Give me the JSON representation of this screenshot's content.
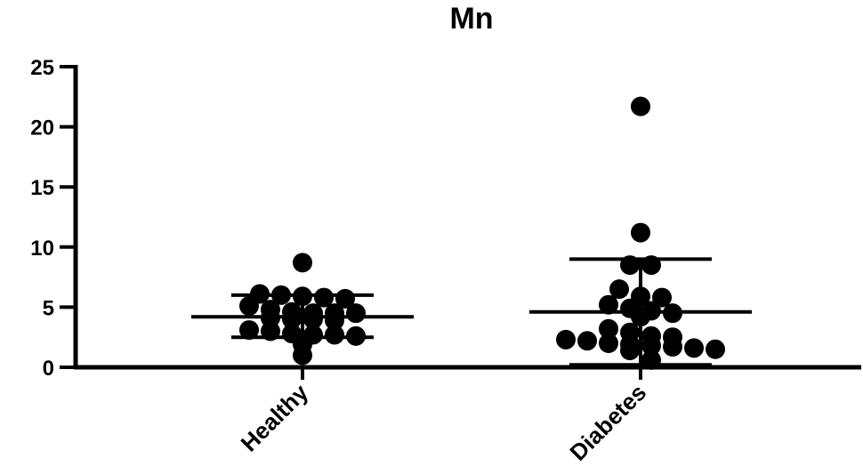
{
  "chart_data": {
    "type": "scatter",
    "title": "Mn",
    "xlabel": "",
    "ylabel": "",
    "ylim": [
      0,
      25
    ],
    "yticks": [
      0,
      5,
      10,
      15,
      20,
      25
    ],
    "ytick_labels": [
      "0",
      "5",
      "10",
      "15",
      "20",
      "25"
    ],
    "categories": [
      "Healthy",
      "Diabetes"
    ],
    "grid": false,
    "legend": "none",
    "marker_color": "#000000",
    "series": [
      {
        "category": "Healthy",
        "mean": 4.2,
        "sd_lower": 2.5,
        "sd_upper": 6.0,
        "values": [
          8.7,
          6.1,
          6.0,
          5.9,
          5.8,
          5.7,
          5.1,
          4.8,
          4.6,
          4.5,
          4.5,
          4.5,
          4.1,
          4.0,
          4.0,
          3.9,
          3.1,
          3.0,
          2.8,
          2.7,
          2.7,
          2.6,
          1.9,
          1.0
        ]
      },
      {
        "category": "Diabetes",
        "mean": 4.6,
        "sd_lower": 0.2,
        "sd_upper": 9.0,
        "values": [
          21.7,
          11.2,
          8.5,
          8.5,
          6.5,
          5.9,
          5.8,
          5.2,
          4.9,
          4.7,
          4.5,
          4.2,
          3.2,
          2.9,
          2.6,
          2.5,
          2.3,
          2.2,
          2.0,
          1.9,
          1.8,
          1.7,
          1.6,
          1.5,
          1.4,
          0.6
        ]
      }
    ]
  }
}
